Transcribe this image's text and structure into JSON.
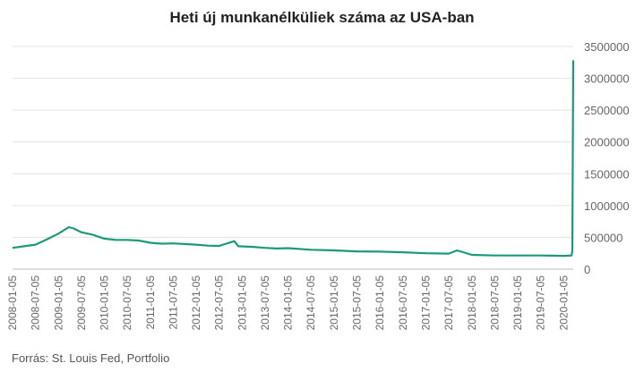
{
  "chart_data": {
    "type": "line",
    "title": "Heti új munkanélküliek száma az USA-ban",
    "source": "Forrás: St. Louis Fed, Portfolio",
    "xlabel": "",
    "ylabel": "",
    "ylim": [
      0,
      3500000
    ],
    "y_ticks": [
      0,
      500000,
      1000000,
      1500000,
      2000000,
      2500000,
      3000000,
      3500000
    ],
    "y_tick_labels": [
      "0",
      "500000",
      "1000000",
      "1500000",
      "2000000",
      "2500000",
      "3000000",
      "3500000"
    ],
    "y_axis_side": "right",
    "grid": true,
    "legend": "none",
    "line_color": "#1a9a7a",
    "x_tick_labels": [
      "2008-01-05",
      "2008-07-05",
      "2009-01-05",
      "2009-07-05",
      "2010-01-05",
      "2010-07-05",
      "2011-01-05",
      "2011-07-05",
      "2012-01-05",
      "2012-07-05",
      "2013-01-05",
      "2013-07-05",
      "2014-01-05",
      "2014-07-05",
      "2015-01-05",
      "2015-07-05",
      "2016-01-05",
      "2016-07-05",
      "2017-01-05",
      "2017-07-05",
      "2018-01-05",
      "2018-07-05",
      "2019-01-05",
      "2019-07-05",
      "2020-01-05"
    ],
    "x": [
      "2008-01-05",
      "2008-04-05",
      "2008-07-05",
      "2008-10-05",
      "2009-01-05",
      "2009-03-28",
      "2009-05-05",
      "2009-07-05",
      "2009-10-05",
      "2010-01-05",
      "2010-04-05",
      "2010-07-05",
      "2010-10-05",
      "2011-01-05",
      "2011-04-05",
      "2011-07-05",
      "2011-10-05",
      "2012-01-05",
      "2012-04-05",
      "2012-07-05",
      "2012-11-03",
      "2012-12-05",
      "2013-04-05",
      "2013-07-05",
      "2013-10-05",
      "2014-01-05",
      "2014-07-05",
      "2015-01-05",
      "2015-07-05",
      "2016-01-05",
      "2016-07-05",
      "2017-01-05",
      "2017-07-05",
      "2017-09-09",
      "2018-01-05",
      "2018-07-05",
      "2019-01-05",
      "2019-07-05",
      "2020-01-05",
      "2020-03-07",
      "2020-03-14",
      "2020-03-21"
    ],
    "values": [
      335000,
      360000,
      385000,
      470000,
      560000,
      660000,
      640000,
      580000,
      540000,
      480000,
      460000,
      460000,
      450000,
      415000,
      400000,
      405000,
      395000,
      385000,
      370000,
      365000,
      440000,
      360000,
      350000,
      335000,
      325000,
      330000,
      305000,
      295000,
      280000,
      275000,
      265000,
      250000,
      245000,
      295000,
      225000,
      215000,
      215000,
      215000,
      210000,
      215000,
      281000,
      3283000
    ]
  }
}
